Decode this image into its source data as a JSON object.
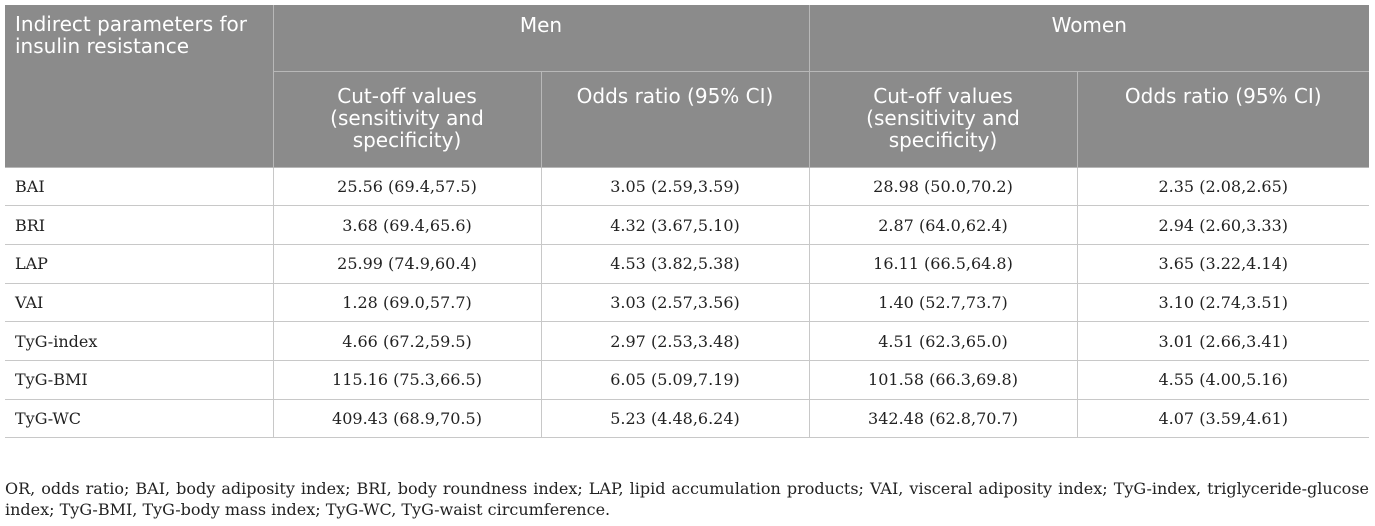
{
  "table": {
    "header": {
      "param_col": "Indirect parameters for insulin resistance",
      "groups": [
        "Men",
        "Women"
      ],
      "subcols": [
        "Cut-off values (sensitivity and specificity)",
        "Odds ratio (95% CI)",
        "Cut-off values (sensitivity and specificity)",
        "Odds ratio (95% CI)"
      ]
    },
    "rows": [
      {
        "param": "BAI",
        "men_cutoff": "25.56 (69.4,57.5)",
        "men_or": "3.05 (2.59,3.59)",
        "women_cutoff": "28.98 (50.0,70.2)",
        "women_or": "2.35 (2.08,2.65)"
      },
      {
        "param": "BRI",
        "men_cutoff": "3.68 (69.4,65.6)",
        "men_or": "4.32 (3.67,5.10)",
        "women_cutoff": "2.87 (64.0,62.4)",
        "women_or": "2.94 (2.60,3.33)"
      },
      {
        "param": "LAP",
        "men_cutoff": "25.99 (74.9,60.4)",
        "men_or": "4.53 (3.82,5.38)",
        "women_cutoff": "16.11 (66.5,64.8)",
        "women_or": "3.65 (3.22,4.14)"
      },
      {
        "param": "VAI",
        "men_cutoff": "1.28 (69.0,57.7)",
        "men_or": "3.03 (2.57,3.56)",
        "women_cutoff": "1.40 (52.7,73.7)",
        "women_or": "3.10 (2.74,3.51)"
      },
      {
        "param": "TyG-index",
        "men_cutoff": "4.66 (67.2,59.5)",
        "men_or": "2.97 (2.53,3.48)",
        "women_cutoff": "4.51 (62.3,65.0)",
        "women_or": "3.01 (2.66,3.41)"
      },
      {
        "param": "TyG-BMI",
        "men_cutoff": "115.16 (75.3,66.5)",
        "men_or": "6.05 (5.09,7.19)",
        "women_cutoff": "101.58 (66.3,69.8)",
        "women_or": "4.55 (4.00,5.16)"
      },
      {
        "param": "TyG-WC",
        "men_cutoff": "409.43 (68.9,70.5)",
        "men_or": "5.23 (4.48,6.24)",
        "women_cutoff": "342.48 (62.8,70.7)",
        "women_or": "4.07 (3.59,4.61)"
      }
    ],
    "footnote": "OR, odds ratio; BAI, body adiposity index; BRI, body roundness index; LAP, lipid accumulation products; VAI, visceral adiposity index; TyG-index, triglyceride-glucose index; TyG-BMI, TyG-body mass index; TyG-WC, TyG-waist circumference."
  }
}
